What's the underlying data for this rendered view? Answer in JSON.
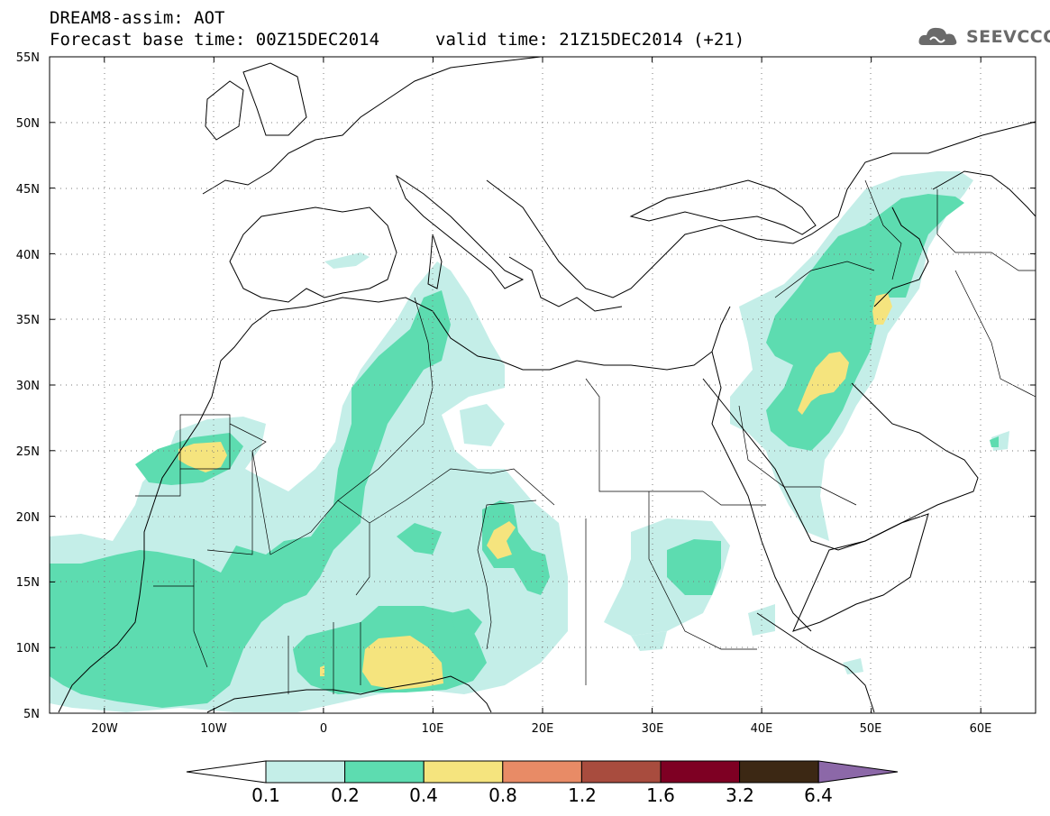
{
  "header": {
    "title": "DREAM8-assim: AOT",
    "base_time": "Forecast base time: 00Z15DEC2014",
    "valid_time": "valid time: 21Z15DEC2014 (+21)"
  },
  "logo": {
    "text": "SEEVCCC",
    "icon": "cloud-icon"
  },
  "map": {
    "projection": "lat-lon",
    "lon_range": [
      -25,
      65
    ],
    "lat_range": [
      5,
      55
    ],
    "lat_ticks": [
      "5N",
      "10N",
      "15N",
      "20N",
      "25N",
      "30N",
      "35N",
      "40N",
      "45N",
      "50N",
      "55N"
    ],
    "lon_ticks": [
      "20W",
      "10W",
      "0",
      "10E",
      "20E",
      "30E",
      "40E",
      "50E",
      "60E"
    ],
    "grid": "dotted"
  },
  "colorbar": {
    "levels": [
      "0.1",
      "0.2",
      "0.4",
      "0.8",
      "1.2",
      "1.6",
      "3.2",
      "6.4"
    ],
    "colors": [
      "#ffffff",
      "#c4eee8",
      "#5ddcb0",
      "#f5e47e",
      "#e88b66",
      "#a84c3e",
      "#7e0023",
      "#3c2814",
      "#8c68a8"
    ]
  }
}
